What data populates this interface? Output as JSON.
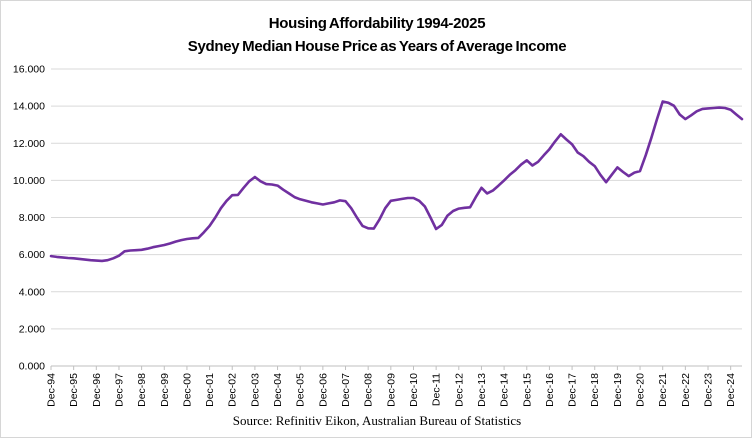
{
  "title": {
    "line1": "Housing Affordability 1994-2025",
    "line2": "Sydney Median House Price as Years of Average Income"
  },
  "source": "Source: Refinitiv Eikon, Australian Bureau of Statistics",
  "chart_data": {
    "type": "line",
    "title": "Housing Affordability 1994-2025",
    "subtitle": "Sydney Median House Price as Years of Average Income",
    "xlabel": "",
    "ylabel": "",
    "legend": "none",
    "grid": "horizontal",
    "y_axis": {
      "min": 0,
      "max": 16,
      "step": 2,
      "tick_labels": [
        "16.000",
        "14.000",
        "12.000",
        "10.000",
        "8.000",
        "6.000",
        "4.000",
        "2.000",
        "0.000"
      ]
    },
    "x_axis": {
      "tick_labels": [
        "Dec-94",
        "Dec-95",
        "Dec-96",
        "Dec-97",
        "Dec-98",
        "Dec-99",
        "Dec-00",
        "Dec-01",
        "Dec-02",
        "Dec-03",
        "Dec-04",
        "Dec-05",
        "Dec-06",
        "Dec-07",
        "Dec-08",
        "Dec-09",
        "Dec-10",
        "Dec-11",
        "Dec-12",
        "Dec-13",
        "Dec-14",
        "Dec-15",
        "Dec-16",
        "Dec-17",
        "Dec-18",
        "Dec-19",
        "Dec-20",
        "Dec-21",
        "Dec-22",
        "Dec-23",
        "Dec-24"
      ],
      "points_per_tick": 4,
      "label_rotation_deg": -90
    },
    "series": [
      {
        "name": "Sydney median house price as years of average income",
        "frequency": "quarterly",
        "start": "Dec-1994",
        "end": "Jun-2025",
        "color": "#7030A0",
        "values": [
          5.92,
          5.88,
          5.85,
          5.82,
          5.8,
          5.77,
          5.73,
          5.7,
          5.68,
          5.66,
          5.7,
          5.8,
          5.94,
          6.18,
          6.22,
          6.24,
          6.26,
          6.32,
          6.4,
          6.46,
          6.52,
          6.6,
          6.7,
          6.78,
          6.84,
          6.88,
          6.9,
          7.2,
          7.55,
          8.0,
          8.5,
          8.9,
          9.2,
          9.22,
          9.6,
          9.95,
          10.18,
          9.95,
          9.8,
          9.78,
          9.72,
          9.5,
          9.3,
          9.1,
          8.98,
          8.9,
          8.82,
          8.76,
          8.7,
          8.76,
          8.82,
          8.92,
          8.88,
          8.5,
          8.0,
          7.55,
          7.42,
          7.4,
          7.9,
          8.5,
          8.9,
          8.95,
          9.0,
          9.05,
          9.05,
          8.9,
          8.6,
          8.0,
          7.38,
          7.6,
          8.1,
          8.35,
          8.48,
          8.52,
          8.55,
          9.1,
          9.6,
          9.3,
          9.45,
          9.72,
          10.0,
          10.3,
          10.55,
          10.85,
          11.08,
          10.8,
          11.0,
          11.35,
          11.68,
          12.1,
          12.48,
          12.2,
          11.94,
          11.5,
          11.3,
          11.0,
          10.77,
          10.3,
          9.9,
          10.3,
          10.7,
          10.45,
          10.23,
          10.42,
          10.5,
          11.35,
          12.3,
          13.3,
          14.25,
          14.18,
          14.02,
          13.55,
          13.3,
          13.5,
          13.72,
          13.85,
          13.88,
          13.9,
          13.92,
          13.9,
          13.8,
          13.55,
          13.3
        ]
      }
    ],
    "colors": {
      "line": "#7030A0",
      "gridline": "#D9D9D9",
      "axis": "#BFBFBF",
      "text": "#000000"
    }
  }
}
